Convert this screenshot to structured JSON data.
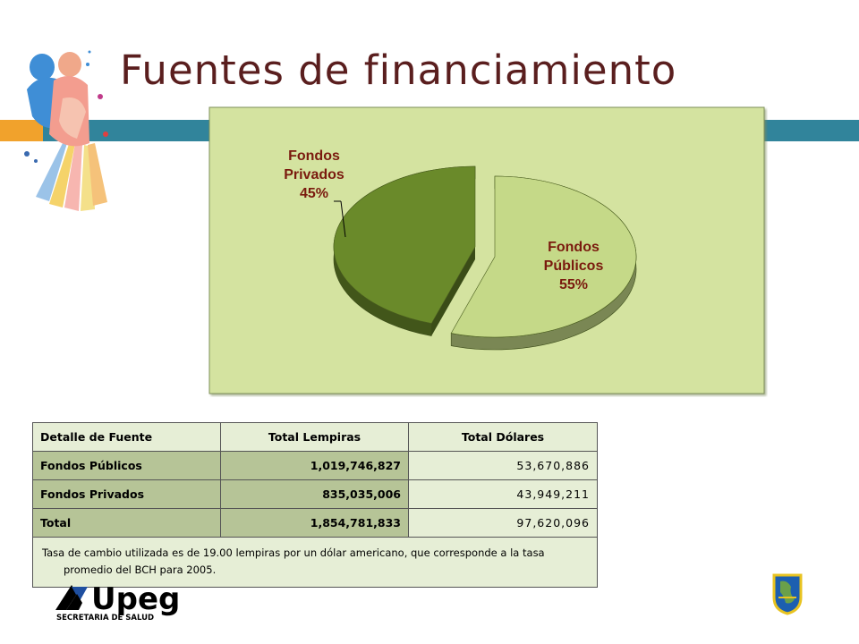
{
  "slide": {
    "title": "Fuentes de financiamiento"
  },
  "chart_data": {
    "type": "pie",
    "slices": [
      {
        "name": "Fondos Públicos",
        "label_line1": "Fondos",
        "label_line2": "Públicos",
        "percent_label": "55%",
        "value": 55,
        "color": "#c5d988"
      },
      {
        "name": "Fondos Privados",
        "label_line1": "Fondos",
        "label_line2": "Privados",
        "percent_label": "45%",
        "value": 45,
        "color": "#6a8a2a"
      }
    ],
    "background": "#d4e3a0",
    "label_color": "#7a1a0e"
  },
  "table": {
    "headers": [
      "Detalle de Fuente",
      "Total Lempiras",
      "Total Dólares"
    ],
    "rows": [
      [
        "Fondos Públicos",
        "1,019,746,827",
        "53,670,886"
      ],
      [
        "Fondos Privados",
        "835,035,006",
        "43,949,211"
      ],
      [
        "Total",
        "1,854,781,833",
        "97,620,096"
      ]
    ],
    "note": "Tasa de cambio utilizada es de 19.00 lempiras por un dólar americano, que corresponde a la tasa promedio del BCH para 2005."
  },
  "footer": {
    "logo_text": "Upeg",
    "logo_subtext": "SECRETARIA DE SALUD"
  },
  "colors": {
    "accent_orange": "#f1a22c",
    "accent_teal": "#31849b",
    "title": "#5a1e1e"
  }
}
